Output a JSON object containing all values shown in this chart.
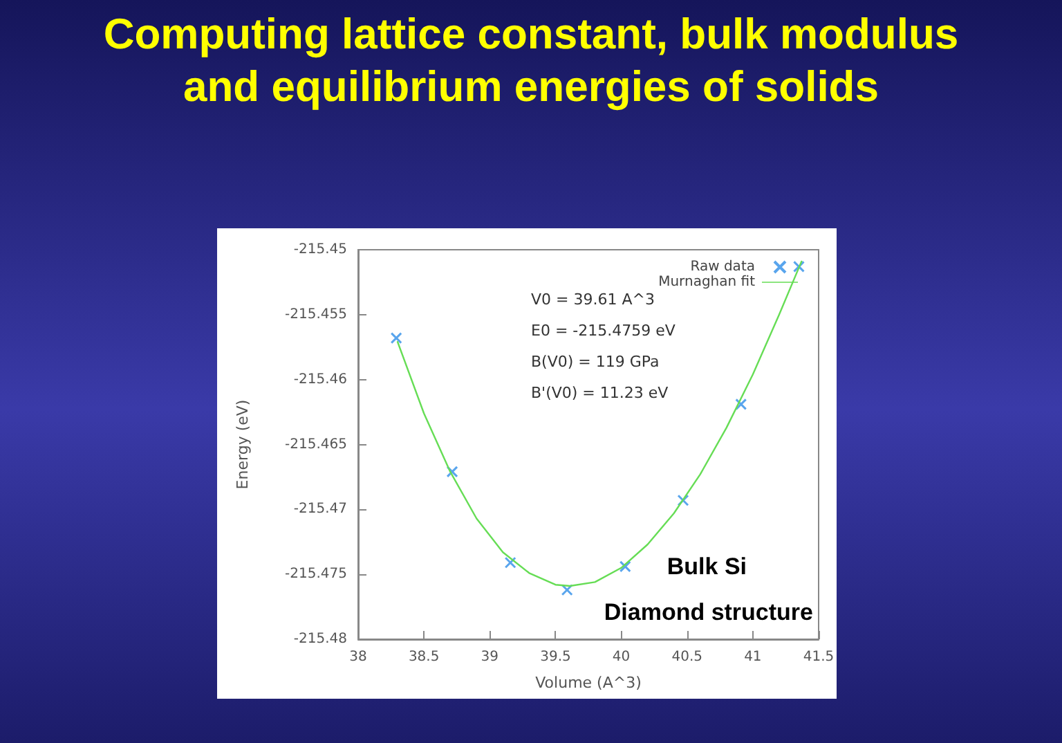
{
  "chart_data": {
    "type": "scatter",
    "title": "Computing lattice constant, bulk modulus\nand equilibrium energies of solids",
    "xlabel": "Volume (A^3)",
    "ylabel": "Energy (eV)",
    "xlim": [
      38,
      41.5
    ],
    "xticks": [
      38,
      38.5,
      39,
      39.5,
      40,
      40.5,
      41,
      41.5
    ],
    "ylim": [
      -215.48,
      -215.45
    ],
    "yticks": [
      -215.48,
      -215.475,
      -215.47,
      -215.465,
      -215.46,
      -215.455,
      -215.45
    ],
    "grid": false,
    "legend": "top right",
    "annotations": [
      "V0 = 39.61 A^3",
      "E0 = -215.4759 eV",
      "B(V0) = 119 GPa",
      "B'(V0) = 11.23 eV",
      "Bulk Si",
      "Diamond structure"
    ],
    "series": [
      {
        "name": "Raw data",
        "marker": "cross",
        "color": "#2f8fe8",
        "x": [
          38.29,
          38.715,
          39.157,
          39.588,
          40.03,
          40.47,
          40.91,
          41.35
        ],
        "values": [
          -215.4568,
          -215.4671,
          -215.4741,
          -215.4762,
          -215.4744,
          -215.4693,
          -215.4619,
          -215.4513
        ]
      },
      {
        "name": "Murnaghan fit",
        "type": "line",
        "marker": "none",
        "color": "#66dd55",
        "x": [
          38.3,
          38.5,
          38.7,
          38.9,
          39.1,
          39.3,
          39.5,
          39.61,
          39.8,
          40.0,
          40.2,
          40.4,
          40.6,
          40.8,
          41.0,
          41.2,
          41.37
        ],
        "values": [
          -215.4571,
          -215.4626,
          -215.4671,
          -215.4707,
          -215.4733,
          -215.4749,
          -215.4758,
          -215.4759,
          -215.4756,
          -215.4745,
          -215.4727,
          -215.4703,
          -215.4673,
          -215.4637,
          -215.4596,
          -215.455,
          -215.4509
        ]
      }
    ]
  }
}
